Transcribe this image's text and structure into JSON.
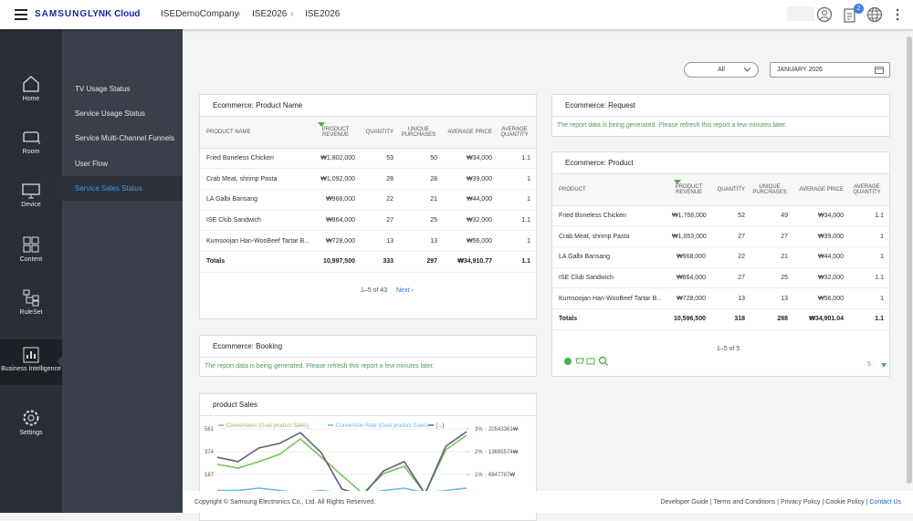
{
  "header": {
    "logo_brand": "SAMSUNG",
    "logo_product": "LYNK Cloud",
    "breadcrumbs": [
      "ISEDemoCompany",
      "ISE2026",
      "ISE2026"
    ],
    "notification_count": 2
  },
  "nav": [
    "Home",
    "Room",
    "Device",
    "Content",
    "RuleSet",
    "Business Intelligence",
    "Settings"
  ],
  "subnav": [
    "TV Usage Status",
    "Service Usage Status",
    "Service Multi-Channel Funnels",
    "User Flow",
    "Service Sales Status"
  ],
  "filters": {
    "segment": "All",
    "month": "JANUARY 2026"
  },
  "product_name_table": {
    "title": "Ecommerce: Product Name",
    "columns": [
      "PRODUCT NAME",
      "PRODUCT REVENUE",
      "QUANTITY",
      "UNIQUE PURCHASES",
      "AVERAGE PRICE",
      "AVERAGE QUANTITY"
    ],
    "rows": [
      [
        "Fried Boneless Chicken",
        "₩1,802,000",
        "53",
        "50",
        "₩34,000",
        "1.1"
      ],
      [
        "Crab Meat, shrimp Pasta",
        "₩1,092,000",
        "28",
        "28",
        "₩39,000",
        "1"
      ],
      [
        "LA Galbi Bansang",
        "₩968,000",
        "22",
        "21",
        "₩44,000",
        "1"
      ],
      [
        "ISE Club Sandwich",
        "₩864,000",
        "27",
        "25",
        "₩32,000",
        "1.1"
      ],
      [
        "Kumsoojan Han-WooBeef Tartar B...",
        "₩728,000",
        "13",
        "13",
        "₩56,000",
        "1"
      ]
    ],
    "totals": [
      "Totals",
      "10,997,500",
      "333",
      "297",
      "₩34,910.77",
      "1.1"
    ],
    "pagination": "1–5 of 43",
    "next": "Next ›"
  },
  "request": {
    "title": "Ecommerce: Request",
    "message": "The report data is being generated. Please refresh this report a few minutes later."
  },
  "product_table": {
    "title": "Ecommerce: Product",
    "columns": [
      "PRODUCT",
      "PRODUCT REVENUE",
      "QUANTITY",
      "UNIQUE PURCHASES",
      "AVERAGE PRICE",
      "AVERAGE QUANTITY"
    ],
    "rows": [
      [
        "Fried Boneless Chicken",
        "₩1,768,000",
        "52",
        "49",
        "₩34,000",
        "1.1"
      ],
      [
        "Crab Meat, shrimp Pasta",
        "₩1,053,000",
        "27",
        "27",
        "₩39,000",
        "1"
      ],
      [
        "LA Galbi Bansang",
        "₩968,000",
        "22",
        "21",
        "₩44,000",
        "1"
      ],
      [
        "ISE Club Sandwich",
        "₩864,000",
        "27",
        "25",
        "₩32,000",
        "1.1"
      ],
      [
        "Kumsoojan Han-WooBeef Tartar B...",
        "₩728,000",
        "13",
        "13",
        "₩56,000",
        "1"
      ]
    ],
    "totals": [
      "Totals",
      "10,596,500",
      "318",
      "288",
      "₩34,901.04",
      "1.1"
    ],
    "pagination": "1–5 of 5",
    "page_size": "5"
  },
  "booking": {
    "title": "Ecommerce: Booking",
    "message": "The report data is being generated. Please refresh this report a few minutes later."
  },
  "product_sales": {
    "type": "line",
    "title": "product Sales",
    "categories": [
      null,
      null,
      null,
      null,
      null,
      null,
      null,
      null,
      null,
      null,
      null,
      null,
      null
    ],
    "series": [
      {
        "name": "Conversions (Goal product Sales)",
        "color": "#7cc35a",
        "values": [
          269,
          239,
          292,
          352,
          479,
          329,
          180,
          30,
          194,
          254,
          30,
          389,
          509
        ]
      },
      {
        "name": "Conversion Rate (Goal product Sales)",
        "color": "#63b9e0",
        "axis": "y2",
        "values": [
          0.3,
          0.3,
          0.4,
          0.3,
          0.2,
          0.3,
          0.2,
          0.1,
          0.3,
          0.4,
          0.2,
          0.3,
          0.4
        ]
      },
      {
        "name": "[...]",
        "color": "#5d6180",
        "axis": "y3",
        "values": [
          12000000,
          10700000,
          14800000,
          16200000,
          19400000,
          13400000,
          2500000,
          500000,
          7900000,
          10700000,
          1100000,
          15300000,
          19700000
        ]
      }
    ],
    "ylim": [
      0,
      561
    ],
    "yticks": [
      561,
      374,
      187
    ],
    "y2lim": [
      0,
      3
    ],
    "y2ticks": [
      {
        "value": 3,
        "label": "3%"
      },
      {
        "value": 2,
        "label": "2%"
      },
      {
        "value": 1,
        "label": "1%"
      }
    ],
    "y3lim": [
      0,
      20543361
    ],
    "y3ticks": [
      {
        "value": 20543361,
        "label": "20543361₩"
      },
      {
        "value": 13695574,
        "label": "13695574₩"
      },
      {
        "value": 6847787,
        "label": "6847787₩"
      }
    ],
    "grid": true
  },
  "footer": {
    "copyright": "Copyright © Samsung Electronics Co., Ltd. All Rights Reserved.",
    "links": [
      "Developer Guide",
      "Terms and Conditions",
      "Privacy Policy",
      "Cookie Policy",
      "Contact Us"
    ]
  }
}
